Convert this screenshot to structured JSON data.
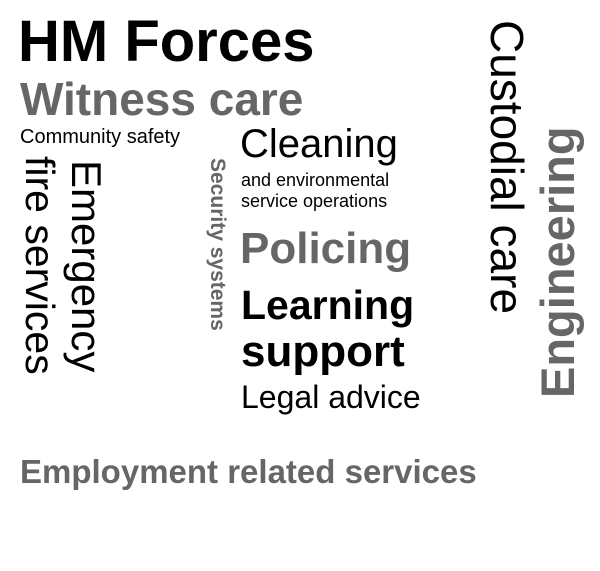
{
  "words": {
    "hm_forces": "HM Forces",
    "witness_care": "Witness care",
    "community_safety": "Community safety",
    "cleaning": "Cleaning",
    "cleaning_sub_1": "and environmental",
    "cleaning_sub_2": "service operations",
    "emergency": "Emergency",
    "fire_services": "fire services",
    "security_systems": "Security systems",
    "policing": "Policing",
    "learning": "Learning",
    "support": "support",
    "legal_advice": "Legal advice",
    "custodial_care": "Custodial care",
    "engineering": "Engineering",
    "employment_related_services": "Employment related services"
  },
  "colors": {
    "black": "#000000",
    "gray": "#666666",
    "background": "#ffffff"
  }
}
